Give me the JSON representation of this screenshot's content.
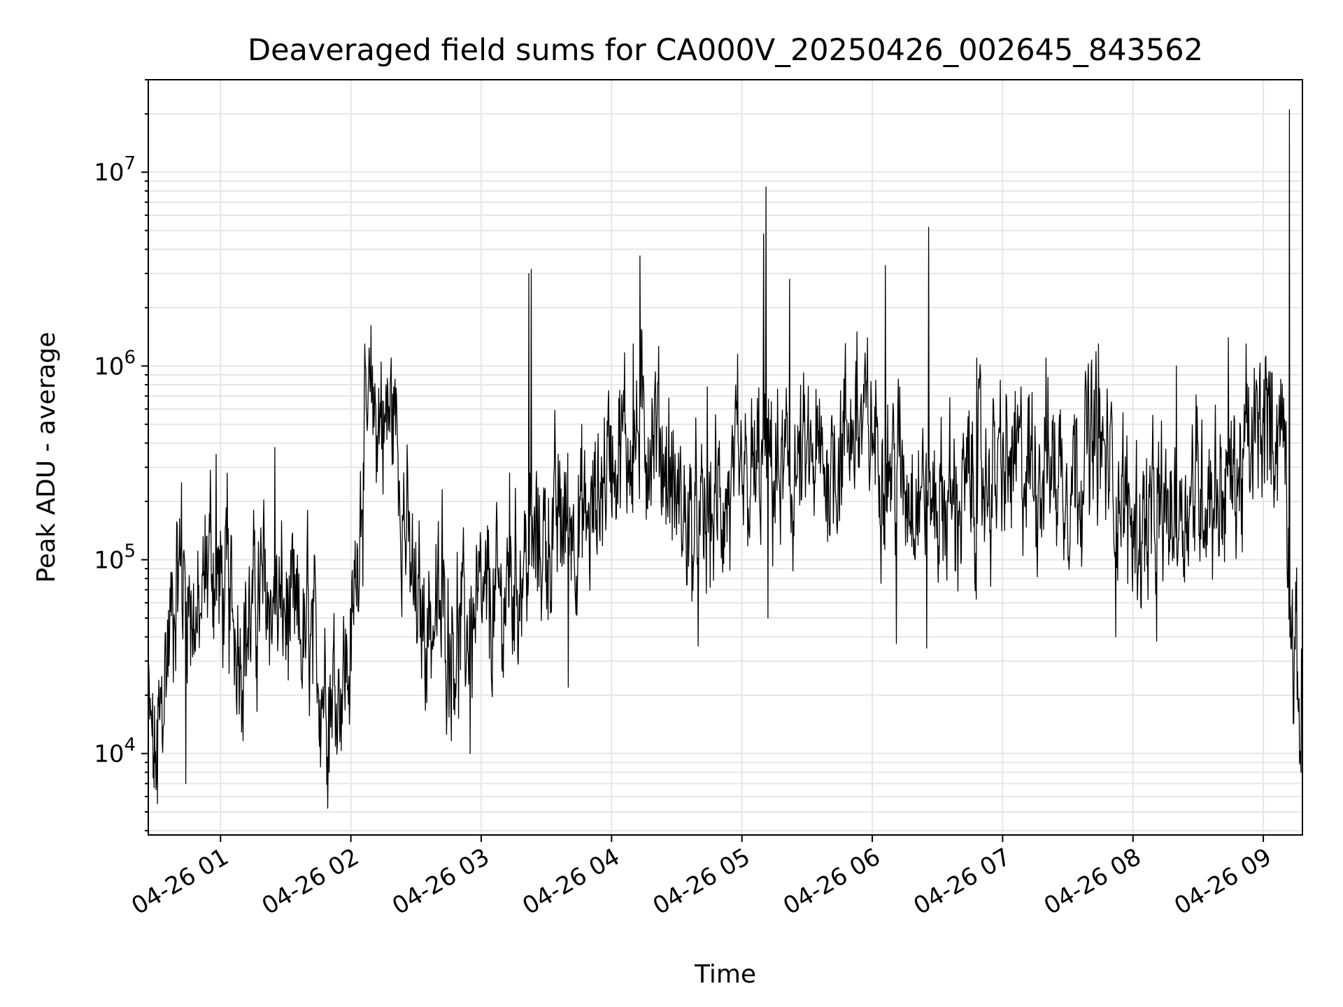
{
  "chart_data": {
    "type": "line",
    "title": "Deaveraged field sums for CA000V_20250426_002645_843562",
    "xlabel": "Time",
    "ylabel": "Peak ADU - average",
    "x_axis": {
      "type": "time",
      "range": [
        "2025-04-26 00:26:45",
        "2025-04-26 09:18:00"
      ],
      "ticks": [
        {
          "value": "2025-04-26 01:00",
          "label": "04-26 01"
        },
        {
          "value": "2025-04-26 02:00",
          "label": "04-26 02"
        },
        {
          "value": "2025-04-26 03:00",
          "label": "04-26 03"
        },
        {
          "value": "2025-04-26 04:00",
          "label": "04-26 04"
        },
        {
          "value": "2025-04-26 05:00",
          "label": "04-26 05"
        },
        {
          "value": "2025-04-26 06:00",
          "label": "04-26 06"
        },
        {
          "value": "2025-04-26 07:00",
          "label": "04-26 07"
        },
        {
          "value": "2025-04-26 08:00",
          "label": "04-26 08"
        },
        {
          "value": "2025-04-26 09:00",
          "label": "04-26 09"
        }
      ]
    },
    "y_axis": {
      "scale": "log",
      "range": [
        3800,
        30000000
      ],
      "ticks": [
        {
          "value": 10000,
          "base": "10",
          "exp": "4"
        },
        {
          "value": 100000,
          "base": "10",
          "exp": "5"
        },
        {
          "value": 1000000,
          "base": "10",
          "exp": "6"
        },
        {
          "value": 10000000,
          "base": "10",
          "exp": "7"
        }
      ]
    },
    "grid": true,
    "line_color": "#000000",
    "grid_color": "#e6e6e6",
    "anchors": [
      [
        "2025-04-26 00:26:45",
        15000
      ],
      [
        "2025-04-26 00:30:00",
        8000
      ],
      [
        "2025-04-26 00:35:00",
        30000
      ],
      [
        "2025-04-26 00:40:00",
        90000
      ],
      [
        "2025-04-26 00:45:00",
        70000
      ],
      [
        "2025-04-26 00:50:00",
        40000
      ],
      [
        "2025-04-26 00:55:00",
        120000
      ],
      [
        "2025-04-26 01:00:00",
        70000
      ],
      [
        "2025-04-26 01:10:00",
        40000
      ],
      [
        "2025-04-26 01:20:00",
        70000
      ],
      [
        "2025-04-26 01:30:00",
        50000
      ],
      [
        "2025-04-26 01:40:00",
        35000
      ],
      [
        "2025-04-26 01:50:00",
        22000
      ],
      [
        "2025-04-26 02:00:00",
        30000
      ],
      [
        "2025-04-26 02:05:00",
        300000
      ],
      [
        "2025-04-26 02:10:00",
        600000
      ],
      [
        "2025-04-26 02:15:00",
        500000
      ],
      [
        "2025-04-26 02:20:00",
        600000
      ],
      [
        "2025-04-26 02:25:00",
        150000
      ],
      [
        "2025-04-26 02:30:00",
        50000
      ],
      [
        "2025-04-26 02:40:00",
        50000
      ],
      [
        "2025-04-26 02:50:00",
        40000
      ],
      [
        "2025-04-26 03:00:00",
        50000
      ],
      [
        "2025-04-26 03:10:00",
        60000
      ],
      [
        "2025-04-26 03:20:00",
        100000
      ],
      [
        "2025-04-26 03:30:00",
        130000
      ],
      [
        "2025-04-26 03:40:00",
        170000
      ],
      [
        "2025-04-26 03:50:00",
        150000
      ],
      [
        "2025-04-26 04:00:00",
        400000
      ],
      [
        "2025-04-26 04:10:00",
        400000
      ],
      [
        "2025-04-26 04:20:00",
        500000
      ],
      [
        "2025-04-26 04:30:00",
        200000
      ],
      [
        "2025-04-26 04:40:00",
        120000
      ],
      [
        "2025-04-26 04:50:00",
        200000
      ],
      [
        "2025-04-26 05:00:00",
        200000
      ],
      [
        "2025-04-26 05:10:00",
        300000
      ],
      [
        "2025-04-26 05:20:00",
        250000
      ],
      [
        "2025-04-26 05:30:00",
        300000
      ],
      [
        "2025-04-26 05:40:00",
        300000
      ],
      [
        "2025-04-26 05:50:00",
        500000
      ],
      [
        "2025-04-26 06:00:00",
        450000
      ],
      [
        "2025-04-26 06:10:00",
        300000
      ],
      [
        "2025-04-26 06:20:00",
        250000
      ],
      [
        "2025-04-26 06:30:00",
        200000
      ],
      [
        "2025-04-26 06:40:00",
        200000
      ],
      [
        "2025-04-26 06:50:00",
        260000
      ],
      [
        "2025-04-26 07:00:00",
        280000
      ],
      [
        "2025-04-26 07:10:00",
        300000
      ],
      [
        "2025-04-26 07:20:00",
        320000
      ],
      [
        "2025-04-26 07:30:00",
        280000
      ],
      [
        "2025-04-26 07:40:00",
        400000
      ],
      [
        "2025-04-26 07:50:00",
        300000
      ],
      [
        "2025-04-26 08:00:00",
        150000
      ],
      [
        "2025-04-26 08:10:00",
        150000
      ],
      [
        "2025-04-26 08:20:00",
        180000
      ],
      [
        "2025-04-26 08:30:00",
        250000
      ],
      [
        "2025-04-26 08:40:00",
        230000
      ],
      [
        "2025-04-26 08:50:00",
        280000
      ],
      [
        "2025-04-26 09:00:00",
        500000
      ],
      [
        "2025-04-26 09:10:00",
        500000
      ],
      [
        "2025-04-26 09:12:00",
        100000
      ],
      [
        "2025-04-26 09:14:00",
        30000
      ],
      [
        "2025-04-26 09:18:00",
        15000
      ]
    ],
    "spikes": [
      [
        "2025-04-26 00:42:00",
        250000
      ],
      [
        "2025-04-26 00:58:00",
        350000
      ],
      [
        "2025-04-26 01:03:00",
        280000
      ],
      [
        "2025-04-26 01:25:00",
        380000
      ],
      [
        "2025-04-26 01:40:00",
        180000
      ],
      [
        "2025-04-26 02:10:00",
        1000000
      ],
      [
        "2025-04-26 02:14:00",
        1050000
      ],
      [
        "2025-04-26 02:42:00",
        230000
      ],
      [
        "2025-04-26 03:13:00",
        280000
      ],
      [
        "2025-04-26 03:22:00",
        3000000
      ],
      [
        "2025-04-26 03:23:00",
        3150000
      ],
      [
        "2025-04-26 03:40:00",
        650000
      ],
      [
        "2025-04-26 04:10:00",
        1300000
      ],
      [
        "2025-04-26 04:13:00",
        3700000
      ],
      [
        "2025-04-26 04:44:00",
        780000
      ],
      [
        "2025-04-26 04:58:00",
        1150000
      ],
      [
        "2025-04-26 05:10:00",
        4800000
      ],
      [
        "2025-04-26 05:11:00",
        8400000
      ],
      [
        "2025-04-26 05:22:00",
        2800000
      ],
      [
        "2025-04-26 05:53:00",
        1500000
      ],
      [
        "2025-04-26 06:06:00",
        3300000
      ],
      [
        "2025-04-26 06:26:00",
        5200000
      ],
      [
        "2025-04-26 06:48:00",
        1100000
      ],
      [
        "2025-04-26 07:20:00",
        1100000
      ],
      [
        "2025-04-26 07:44:00",
        1300000
      ],
      [
        "2025-04-26 08:20:00",
        1000000
      ],
      [
        "2025-04-26 08:44:00",
        1400000
      ],
      [
        "2025-04-26 08:52:00",
        1300000
      ],
      [
        "2025-04-26 09:12:00",
        21000000
      ]
    ],
    "dips": [
      [
        "2025-04-26 00:31:00",
        5500
      ],
      [
        "2025-04-26 00:44:00",
        7000
      ],
      [
        "2025-04-26 01:50:00",
        8000
      ],
      [
        "2025-04-26 02:55:00",
        10000
      ],
      [
        "2025-04-26 03:40:00",
        22000
      ],
      [
        "2025-04-26 05:12:00",
        50000
      ],
      [
        "2025-04-26 06:11:00",
        37000
      ],
      [
        "2025-04-26 06:25:00",
        35000
      ],
      [
        "2025-04-26 07:52:00",
        40000
      ],
      [
        "2025-04-26 08:11:00",
        38000
      ]
    ]
  }
}
